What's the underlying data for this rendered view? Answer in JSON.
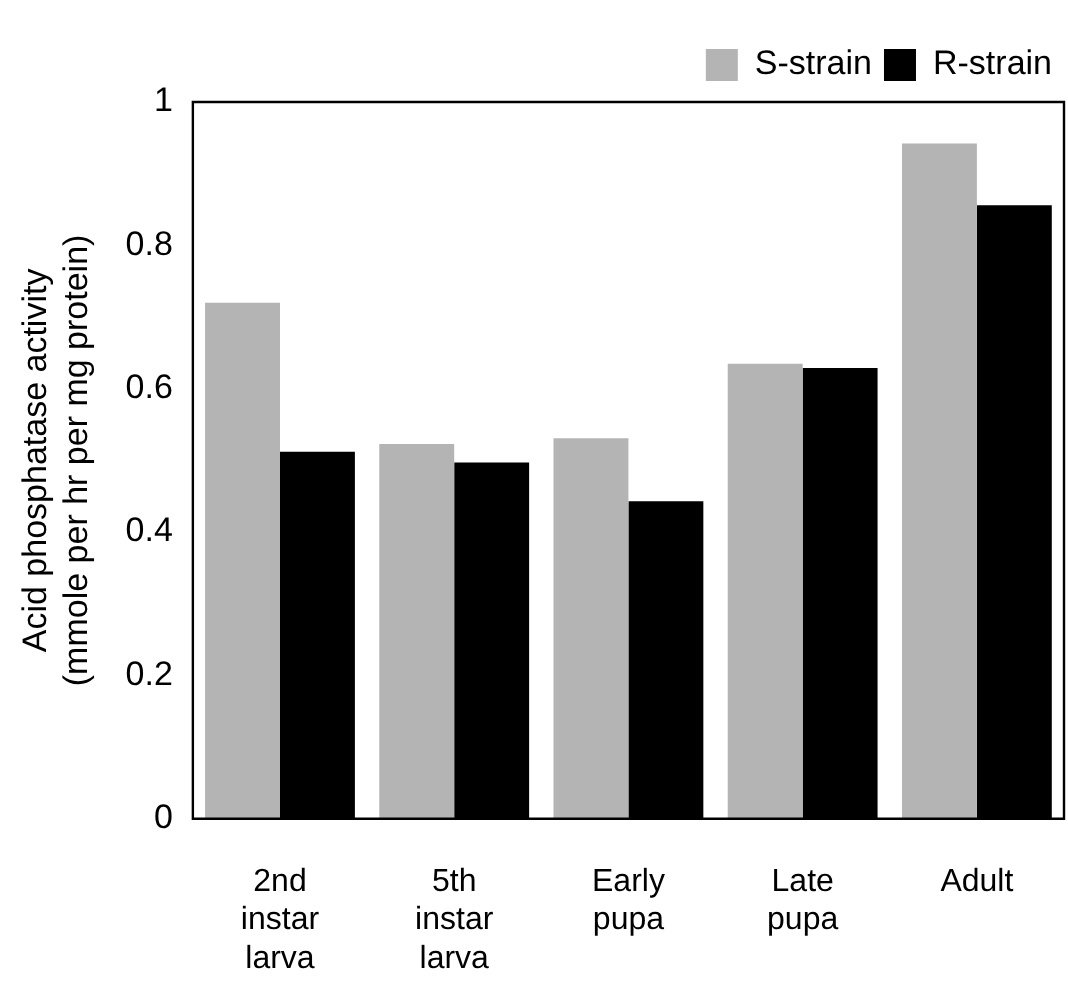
{
  "chart_data": {
    "type": "bar",
    "ylabel": "Acid phosphatase activity\n(mmole per hr per mg protein)",
    "categories": [
      "2nd instar larva",
      "5th instar larva",
      "Early pupa",
      "Late pupa",
      "Adult"
    ],
    "series": [
      {
        "name": "S-strain",
        "color": "#b4b4b4",
        "values": [
          0.72,
          0.523,
          0.531,
          0.635,
          0.942
        ]
      },
      {
        "name": "R-strain",
        "color": "#000000",
        "values": [
          0.512,
          0.497,
          0.443,
          0.629,
          0.856
        ]
      }
    ],
    "ylim": [
      0,
      1
    ],
    "yticks": [
      0,
      0.2,
      0.4,
      0.6,
      0.8,
      1
    ],
    "grid": false,
    "legend": "top right"
  }
}
